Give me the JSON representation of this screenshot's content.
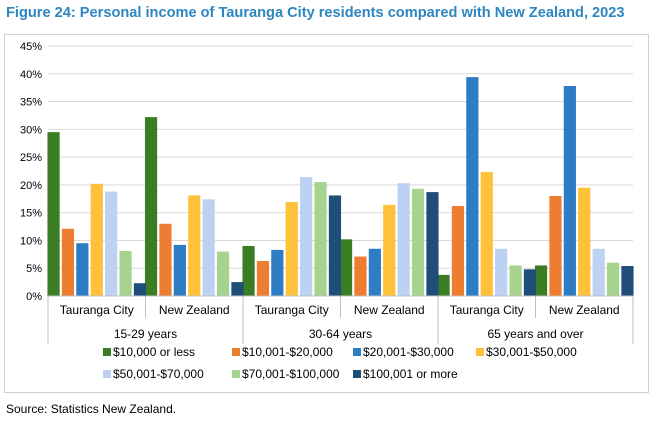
{
  "title": "Figure 24: Personal income of Tauranga City residents compared with New Zealand, 2023",
  "source": "Source: Statistics New Zealand.",
  "chart_data": {
    "type": "bar",
    "groups": [
      {
        "label": "15-29 years",
        "categories": [
          "Tauranga City",
          "New Zealand"
        ]
      },
      {
        "label": "30-64 years",
        "categories": [
          "Tauranga City",
          "New Zealand"
        ]
      },
      {
        "label": "65 years and over",
        "categories": [
          "Tauranga City",
          "New Zealand"
        ]
      }
    ],
    "y_ticks": [
      "0%",
      "5%",
      "10%",
      "15%",
      "20%",
      "25%",
      "30%",
      "35%",
      "40%",
      "45%"
    ],
    "ylim": [
      0,
      45
    ],
    "grid": true,
    "legend_position": "bottom",
    "series": [
      {
        "name": "$10,000 or less",
        "color": "#3A7D22",
        "values": [
          29.5,
          32.2,
          9.0,
          10.2,
          3.8,
          5.5
        ]
      },
      {
        "name": "$10,001-$20,000",
        "color": "#ED7D31",
        "values": [
          12.1,
          13.0,
          6.3,
          7.1,
          16.2,
          18.0
        ]
      },
      {
        "name": "$20,001-$30,000",
        "color": "#2E7CC4",
        "values": [
          9.5,
          9.2,
          8.3,
          8.5,
          39.4,
          37.8
        ]
      },
      {
        "name": "$30,001-$50,000",
        "color": "#FFC03A",
        "values": [
          20.2,
          18.1,
          16.9,
          16.4,
          22.3,
          19.5
        ]
      },
      {
        "name": "$50,001-$70,000",
        "color": "#BDD1F2",
        "values": [
          18.8,
          17.4,
          21.4,
          20.3,
          8.5,
          8.5
        ]
      },
      {
        "name": "$70,001-$100,000",
        "color": "#A6D38E",
        "values": [
          8.1,
          8.0,
          20.5,
          19.3,
          5.5,
          6.0
        ]
      },
      {
        "name": "$100,001 or more",
        "color": "#1F4E79",
        "values": [
          2.3,
          2.5,
          18.1,
          18.7,
          4.8,
          5.4
        ]
      }
    ]
  }
}
